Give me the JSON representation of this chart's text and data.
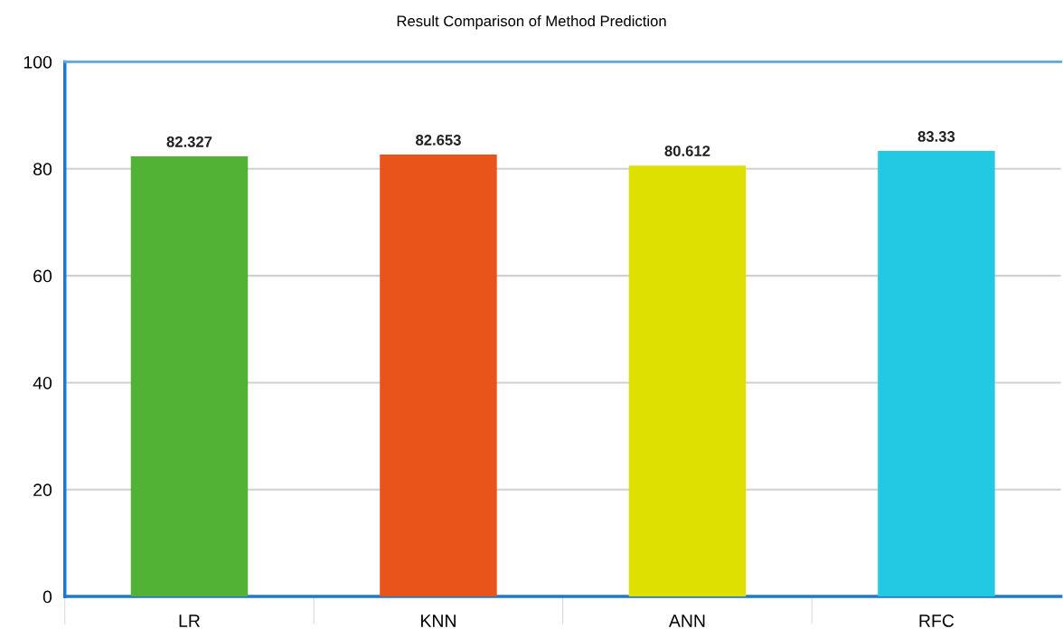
{
  "chart_data": {
    "type": "bar",
    "title": "Result Comparison of Method Prediction",
    "categories": [
      "LR",
      "KNN",
      "ANN",
      "RFC"
    ],
    "values": [
      82.327,
      82.653,
      80.612,
      83.33
    ],
    "colors": [
      "#52b236",
      "#e8541a",
      "#dde000",
      "#22c9e3"
    ],
    "ylim": [
      0,
      100
    ],
    "yticks": [
      0,
      20,
      40,
      60,
      80,
      100
    ],
    "grid": "y",
    "data_labels": true
  }
}
